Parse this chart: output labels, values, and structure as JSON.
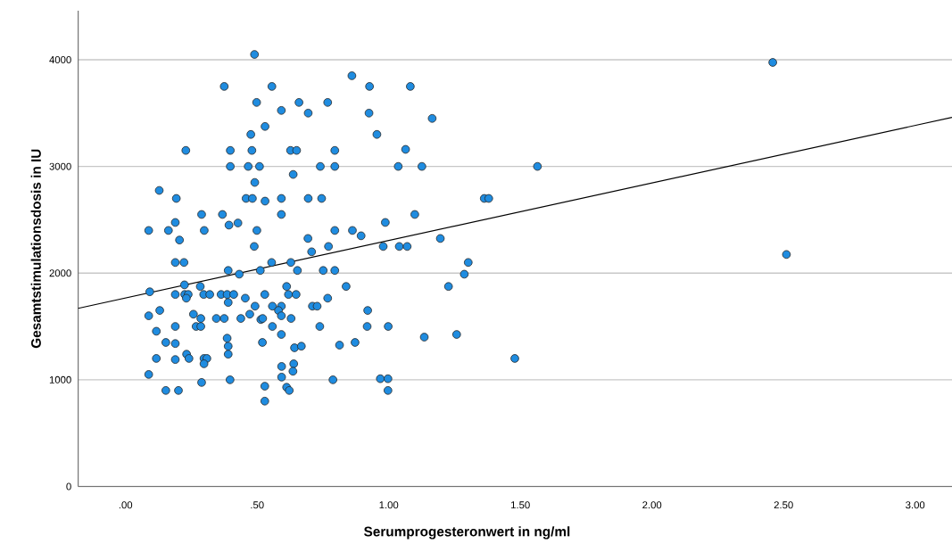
{
  "chart_data": {
    "type": "scatter",
    "xlabel": "Serumprogesteronwert in ng/ml",
    "ylabel": "Gesamtstimulationsdosis in IU",
    "xlim": [
      -0.18,
      3.14
    ],
    "ylim": [
      0,
      4460
    ],
    "xticks": [
      {
        "value": 0,
        "label": ".00"
      },
      {
        "value": 0.5,
        "label": ".50"
      },
      {
        "value": 1,
        "label": "1.00"
      },
      {
        "value": 1.5,
        "label": "1.50"
      },
      {
        "value": 2,
        "label": "2.00"
      },
      {
        "value": 2.5,
        "label": "2.50"
      },
      {
        "value": 3,
        "label": "3.00"
      }
    ],
    "yticks": [
      0,
      1000,
      2000,
      3000,
      4000
    ],
    "grid": "y",
    "series": [
      {
        "marker": "circle",
        "color": "#1f8ce0",
        "x": [
          0.49,
          0.375,
          0.556,
          0.498,
          0.592,
          0.659,
          0.694,
          0.53,
          0.476,
          0.229,
          0.398,
          0.48,
          0.627,
          0.65,
          0.398,
          0.466,
          0.509,
          0.637,
          0.491,
          0.128,
          0.193,
          0.458,
          0.482,
          0.53,
          0.592,
          0.694,
          0.289,
          0.368,
          0.592,
          0.189,
          0.393,
          0.427,
          0.088,
          0.163,
          0.205,
          0.299,
          0.499,
          0.489,
          0.693,
          0.707,
          0.189,
          0.222,
          0.39,
          0.432,
          0.512,
          0.555,
          0.628,
          0.653,
          0.092,
          0.224,
          0.284,
          0.189,
          0.225,
          0.238,
          0.231,
          0.297,
          0.32,
          0.363,
          0.386,
          0.411,
          0.39,
          0.455,
          0.529,
          0.612,
          0.619,
          0.648,
          0.71,
          0.13,
          0.088,
          0.258,
          0.286,
          0.345,
          0.375,
          0.438,
          0.472,
          0.492,
          0.514,
          0.521,
          0.558,
          0.592,
          0.581,
          0.592,
          0.629,
          0.117,
          0.189,
          0.268,
          0.286,
          0.153,
          0.189,
          0.386,
          0.39,
          0.39,
          0.52,
          0.558,
          0.592,
          0.642,
          0.668,
          0.117,
          0.189,
          0.232,
          0.241,
          0.298,
          0.309,
          0.298,
          0.088,
          0.289,
          0.397,
          0.529,
          0.593,
          0.639,
          0.636,
          0.593,
          0.612,
          0.622,
          0.153,
          0.201,
          0.529,
          0.86,
          0.927,
          1.082,
          0.768,
          0.925,
          1.165,
          0.955,
          0.795,
          1.064,
          0.74,
          0.795,
          1.036,
          1.126,
          1.565,
          0.745,
          1.363,
          1.38,
          0.987,
          1.099,
          0.795,
          0.862,
          0.895,
          0.771,
          0.979,
          1.04,
          1.07,
          1.196,
          1.302,
          1.287,
          1.227,
          0.751,
          0.795,
          0.838,
          0.768,
          0.728,
          0.92,
          0.738,
          0.918,
          0.998,
          0.813,
          0.872,
          1.135,
          1.258,
          1.479,
          0.788,
          0.968,
          0.997,
          0.997,
          2.459,
          2.511
        ],
        "values": [
          4050,
          3750,
          3750,
          3600,
          3525,
          3600,
          3500,
          3375,
          3300,
          3150,
          3150,
          3150,
          3150,
          3150,
          3000,
          3000,
          3000,
          2925,
          2850,
          2775,
          2700,
          2700,
          2700,
          2675,
          2700,
          2700,
          2550,
          2550,
          2550,
          2475,
          2450,
          2470,
          2400,
          2400,
          2310,
          2400,
          2400,
          2250,
          2325,
          2200,
          2100,
          2100,
          2025,
          1990,
          2025,
          2100,
          2100,
          2025,
          1825,
          1890,
          1875,
          1800,
          1800,
          1800,
          1765,
          1800,
          1800,
          1800,
          1800,
          1800,
          1725,
          1765,
          1800,
          1875,
          1800,
          1800,
          1690,
          1650,
          1600,
          1615,
          1575,
          1575,
          1575,
          1575,
          1615,
          1690,
          1565,
          1575,
          1690,
          1690,
          1650,
          1600,
          1575,
          1455,
          1500,
          1500,
          1500,
          1350,
          1340,
          1390,
          1315,
          1240,
          1350,
          1500,
          1425,
          1300,
          1315,
          1200,
          1190,
          1240,
          1200,
          1200,
          1200,
          1150,
          1050,
          975,
          1000,
          940,
          1125,
          1150,
          1080,
          1025,
          930,
          900,
          900,
          900,
          800,
          3850,
          3750,
          3750,
          3600,
          3500,
          3450,
          3300,
          3150,
          3160,
          3000,
          3000,
          3000,
          3000,
          3000,
          2700,
          2700,
          2700,
          2475,
          2550,
          2400,
          2400,
          2350,
          2250,
          2250,
          2250,
          2250,
          2325,
          2100,
          1990,
          1875,
          2025,
          2025,
          1875,
          1765,
          1690,
          1650,
          1500,
          1500,
          1500,
          1325,
          1350,
          1400,
          1425,
          1200,
          1000,
          1010,
          1010,
          900,
          3975,
          2175
        ]
      },
      {
        "type": "line",
        "marker": "none",
        "color": "#000000",
        "x": [
          -0.18,
          3.14
        ],
        "values": [
          1670,
          3460
        ]
      }
    ]
  }
}
